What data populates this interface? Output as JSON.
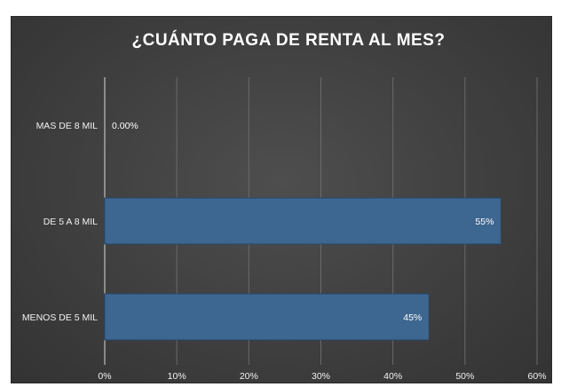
{
  "chart_data": {
    "type": "bar",
    "orientation": "horizontal",
    "title": "¿CUÁNTO PAGA DE RENTA AL MES?",
    "categories": [
      "MAS DE 8 MIL",
      "DE 5 A 8 MIL",
      "MENOS DE 5 MIL"
    ],
    "values": [
      0,
      55,
      45
    ],
    "data_labels": [
      "0.00%",
      "55%",
      "45%"
    ],
    "xlim": [
      0,
      60
    ],
    "x_ticks": [
      "0%",
      "10%",
      "20%",
      "30%",
      "40%",
      "50%",
      "60%"
    ],
    "grid": true,
    "legend": "none",
    "colors": {
      "bar": "#3d6690",
      "bar_border": "#27496d",
      "background": "#404040",
      "grid": "#6a6a6a",
      "text": "#ffffff"
    }
  }
}
